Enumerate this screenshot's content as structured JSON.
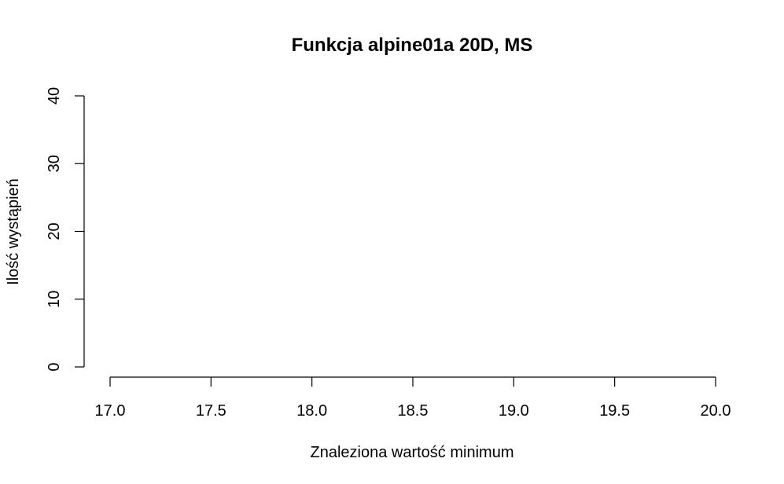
{
  "chart_data": {
    "type": "bar",
    "title": "Funkcja alpine01a 20D, MS",
    "xlabel": "Znaleziona wartość minimum",
    "ylabel": "Ilość wystąpień",
    "xlim": [
      17.0,
      20.0
    ],
    "ylim": [
      0,
      40
    ],
    "x_ticks": [
      "17.0",
      "17.5",
      "18.0",
      "18.5",
      "19.0",
      "19.5",
      "20.0"
    ],
    "y_ticks": [
      "0",
      "10",
      "20",
      "30",
      "40"
    ],
    "values": [],
    "grid": false
  }
}
